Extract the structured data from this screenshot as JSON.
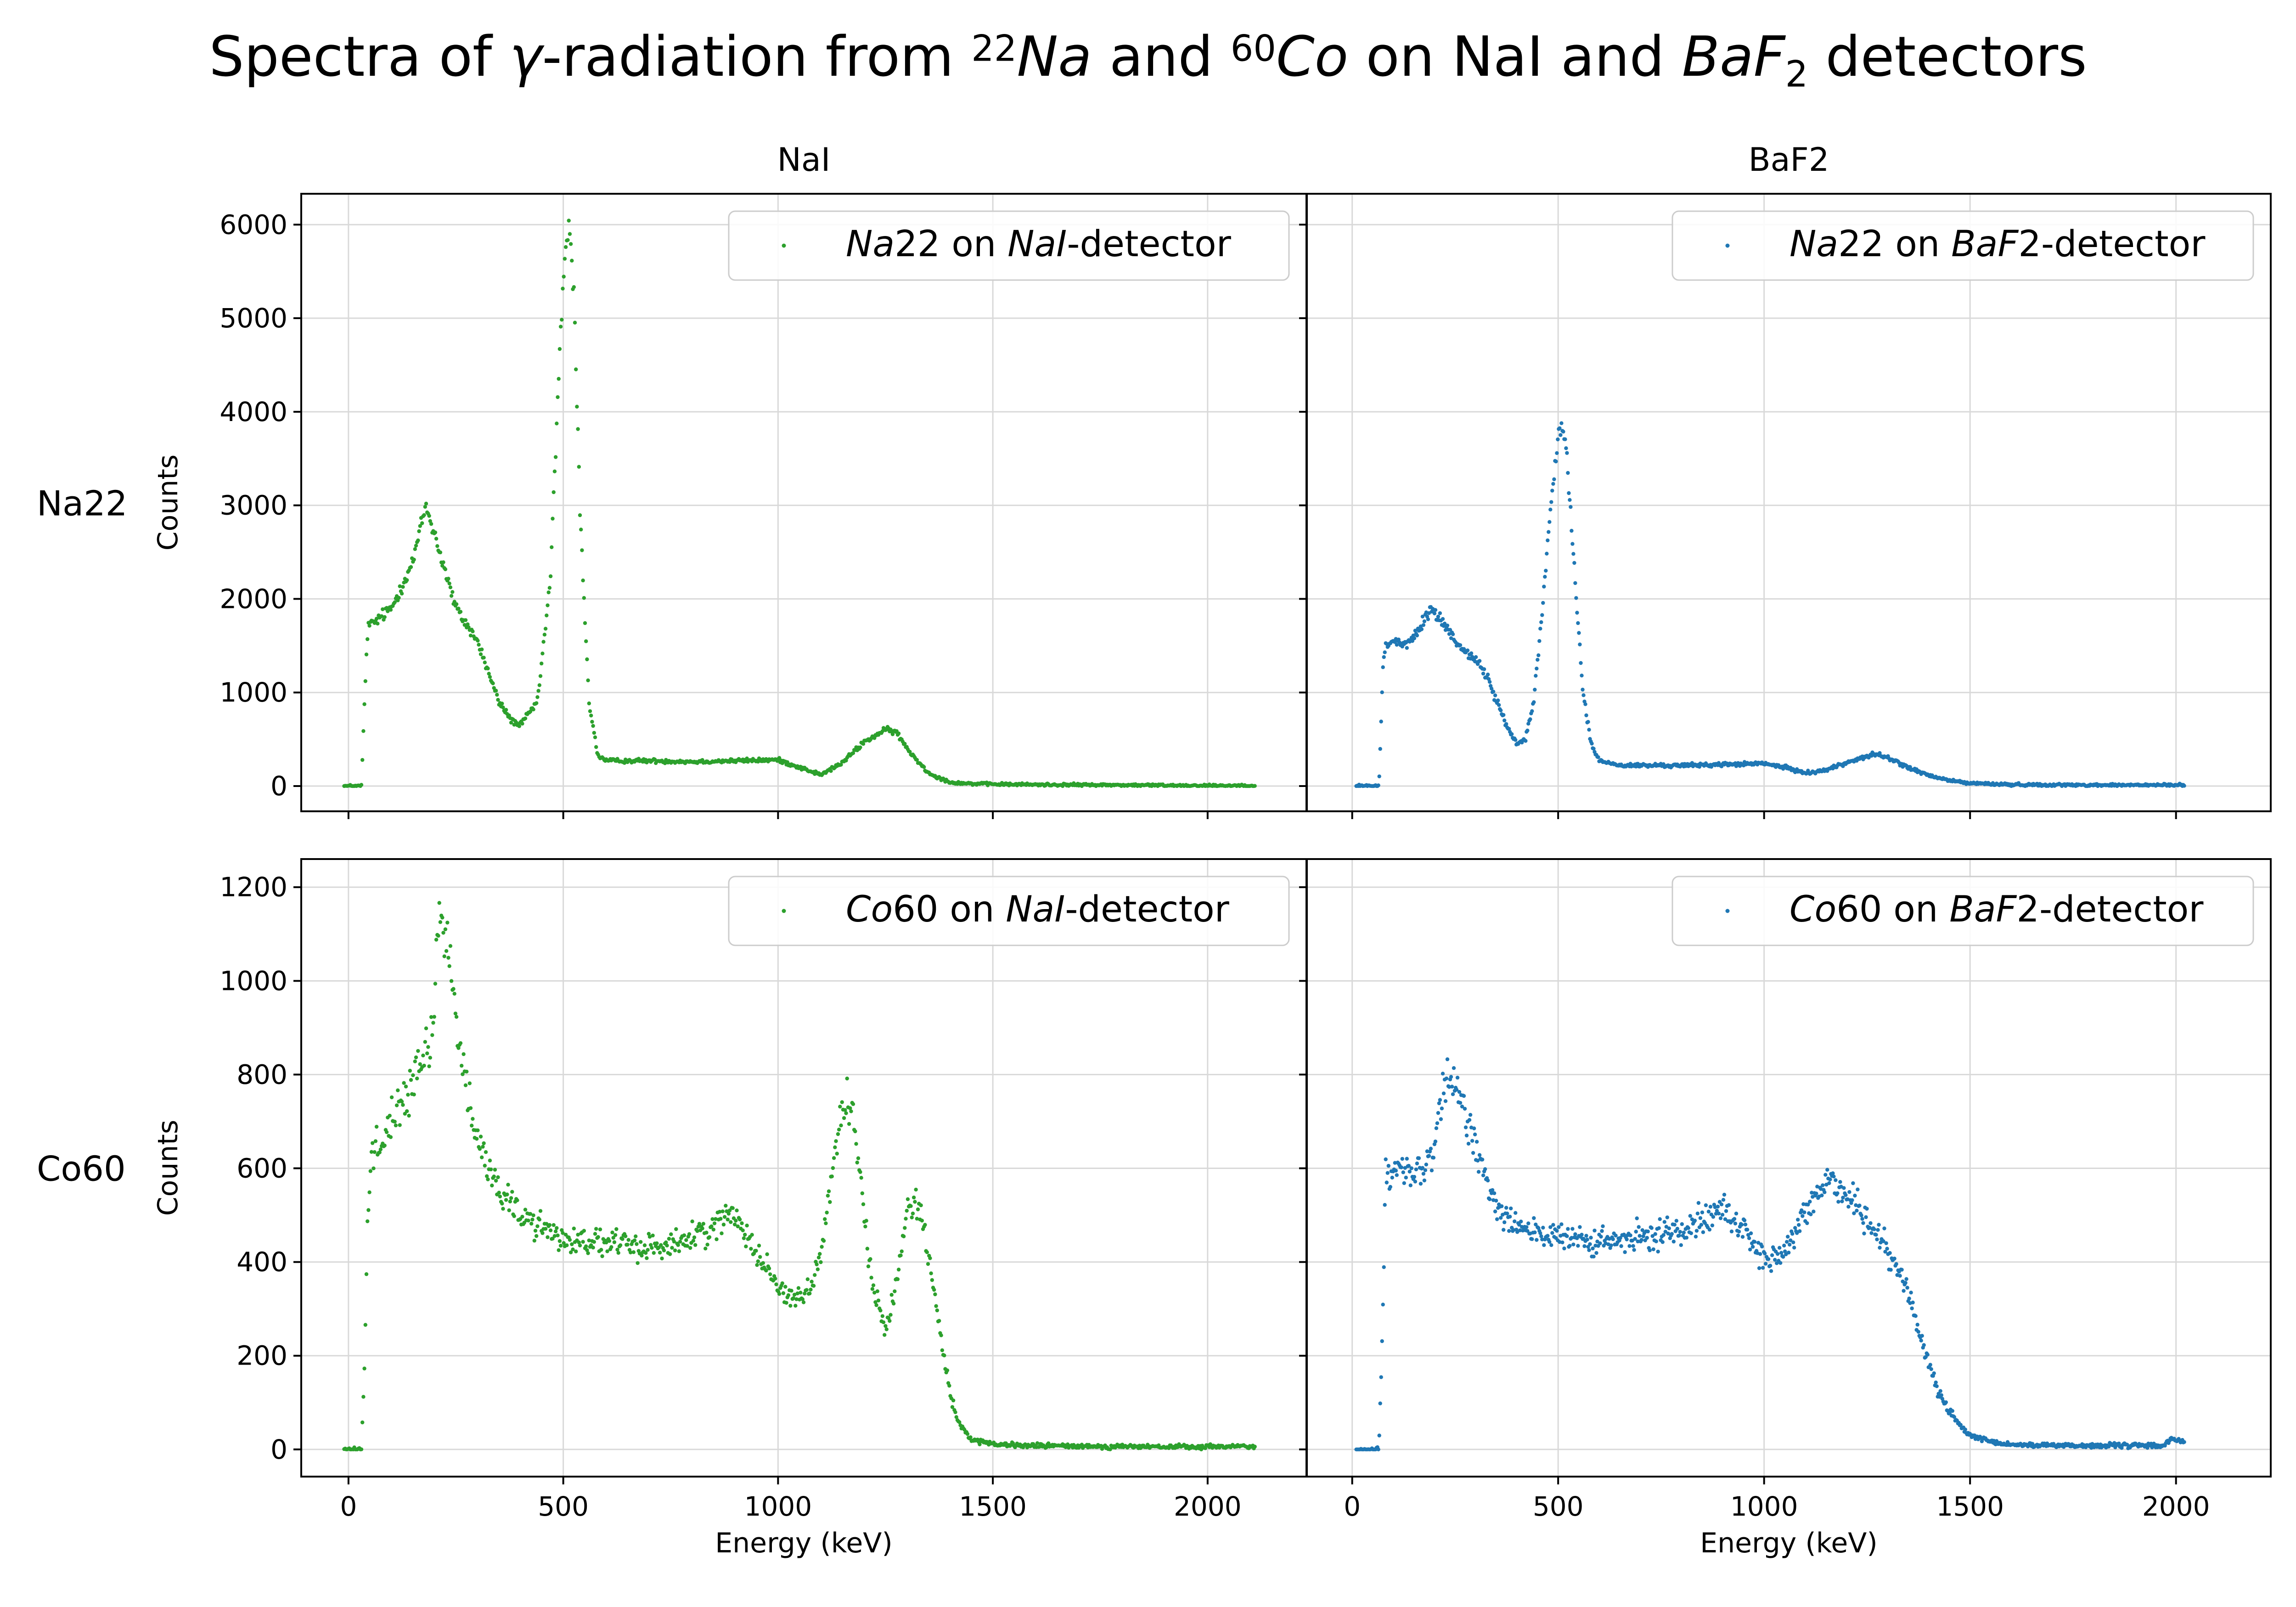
{
  "figure": {
    "title": {
      "t1": "Spectra of ",
      "t2": "γ",
      "t3": "-radiation from ",
      "t4": "22",
      "t5": "Na",
      "t6": " and ",
      "t7": "60",
      "t8": "Co",
      "t9": " on NaI and ",
      "t10": "BaF",
      "t11": "2",
      "t12": " detectors"
    },
    "column_titles": [
      "NaI",
      "BaF2"
    ],
    "row_labels": [
      "Na22",
      "Co60"
    ],
    "colors": {
      "nai": "#2ca02c",
      "baf2": "#1f77b4",
      "grid": "#d9d9d9"
    }
  },
  "chart_data": [
    {
      "type": "scatter",
      "panel": "Na22-NaI",
      "column_title": "NaI",
      "row_label": "Na22",
      "legend": {
        "italic": "Na",
        "text": "22 on ",
        "italic2": "NaI",
        "text2": "-detector",
        "position": "top-right"
      },
      "xlabel": "",
      "ylabel": "Counts",
      "xlim": [
        -110,
        2230
      ],
      "ylim": [
        -270,
        6330
      ],
      "xticks": [
        0,
        500,
        1000,
        1500,
        2000
      ],
      "yticks": [
        0,
        1000,
        2000,
        3000,
        4000,
        5000,
        6000
      ],
      "grid": true,
      "color": "#2ca02c",
      "x": [
        -10,
        30,
        40,
        45,
        60,
        100,
        150,
        180,
        200,
        250,
        300,
        350,
        380,
        400,
        440,
        470,
        490,
        505,
        515,
        525,
        540,
        560,
        580,
        600,
        700,
        800,
        900,
        1000,
        1050,
        1100,
        1150,
        1200,
        1250,
        1275,
        1300,
        1350,
        1400,
        1450,
        1500,
        1600,
        1800,
        2000,
        2110
      ],
      "y": [
        0,
        0,
        1200,
        1700,
        1750,
        1900,
        2400,
        3000,
        2700,
        1900,
        1550,
        900,
        700,
        650,
        900,
        2200,
        4500,
        5800,
        5900,
        5200,
        2800,
        900,
        330,
        270,
        270,
        260,
        270,
        280,
        200,
        120,
        250,
        470,
        600,
        580,
        400,
        140,
        40,
        25,
        20,
        15,
        10,
        5,
        5
      ]
    },
    {
      "type": "scatter",
      "panel": "Na22-BaF2",
      "column_title": "BaF2",
      "row_label": "Na22",
      "legend": {
        "italic": "Na",
        "text": "22 on ",
        "italic2": "BaF",
        "text2": "2-detector",
        "position": "top-right"
      },
      "xlabel": "",
      "ylabel": "",
      "xlim": [
        -110,
        2230
      ],
      "ylim": [
        -270,
        6330
      ],
      "xticks": [
        0,
        500,
        1000,
        1500,
        2000
      ],
      "yticks": [
        0,
        1000,
        2000,
        3000,
        4000,
        5000,
        6000
      ],
      "grid": true,
      "color": "#1f77b4",
      "x": [
        10,
        65,
        75,
        80,
        100,
        130,
        160,
        190,
        220,
        260,
        300,
        330,
        360,
        380,
        400,
        420,
        440,
        460,
        480,
        500,
        510,
        520,
        540,
        560,
        580,
        600,
        650,
        700,
        800,
        900,
        1000,
        1050,
        1100,
        1150,
        1200,
        1250,
        1275,
        1300,
        1350,
        1400,
        1450,
        1500,
        1600,
        1800,
        2020
      ],
      "y": [
        0,
        0,
        1300,
        1500,
        1550,
        1500,
        1650,
        1900,
        1750,
        1500,
        1350,
        1150,
        800,
        600,
        450,
        500,
        900,
        1800,
        2900,
        3700,
        3800,
        3600,
        2300,
        1000,
        450,
        270,
        220,
        220,
        220,
        230,
        240,
        200,
        140,
        170,
        250,
        320,
        340,
        300,
        200,
        110,
        60,
        30,
        15,
        10,
        10
      ]
    },
    {
      "type": "scatter",
      "panel": "Co60-NaI",
      "column_title": "NaI",
      "row_label": "Co60",
      "legend": {
        "italic": "Co",
        "text": "60 on ",
        "italic2": "NaI",
        "text2": "-detector",
        "position": "top-right"
      },
      "xlabel": "Energy (keV)",
      "ylabel": "Counts",
      "xlim": [
        -110,
        2230
      ],
      "ylim": [
        -58,
        1260
      ],
      "xticks": [
        0,
        500,
        1000,
        1500,
        2000
      ],
      "yticks": [
        0,
        200,
        400,
        600,
        800,
        1000,
        1200
      ],
      "grid": true,
      "color": "#2ca02c",
      "x": [
        -10,
        30,
        38,
        45,
        50,
        70,
        100,
        130,
        160,
        190,
        210,
        220,
        240,
        260,
        280,
        300,
        350,
        400,
        500,
        600,
        700,
        800,
        850,
        900,
        920,
        950,
        1000,
        1040,
        1080,
        1100,
        1120,
        1140,
        1160,
        1170,
        1180,
        1200,
        1220,
        1250,
        1270,
        1300,
        1320,
        1340,
        1360,
        1380,
        1400,
        1420,
        1450,
        1500,
        1600,
        1800,
        2000,
        2080,
        2110
      ],
      "y": [
        0,
        0,
        200,
        500,
        620,
        650,
        700,
        750,
        800,
        850,
        1100,
        1150,
        1000,
        850,
        750,
        650,
        560,
        500,
        450,
        440,
        430,
        450,
        480,
        500,
        480,
        420,
        350,
        320,
        350,
        420,
        550,
        680,
        750,
        740,
        680,
        500,
        350,
        250,
        340,
        500,
        540,
        480,
        360,
        230,
        120,
        60,
        20,
        10,
        8,
        6,
        5,
        8,
        3
      ]
    },
    {
      "type": "scatter",
      "panel": "Co60-BaF2",
      "column_title": "BaF2",
      "row_label": "Co60",
      "legend": {
        "italic": "Co",
        "text": "60 on ",
        "italic2": "BaF",
        "text2": "2-detector",
        "position": "top-right"
      },
      "xlabel": "Energy (keV)",
      "ylabel": "",
      "xlim": [
        -110,
        2230
      ],
      "ylim": [
        -58,
        1260
      ],
      "xticks": [
        0,
        500,
        1000,
        1500,
        2000
      ],
      "yticks": [
        0,
        200,
        400,
        600,
        800,
        1000,
        1200
      ],
      "grid": true,
      "color": "#1f77b4",
      "x": [
        10,
        65,
        75,
        80,
        100,
        130,
        160,
        190,
        210,
        230,
        260,
        300,
        350,
        400,
        500,
        600,
        700,
        800,
        850,
        900,
        950,
        1000,
        1020,
        1060,
        1100,
        1130,
        1160,
        1190,
        1220,
        1250,
        1300,
        1340,
        1360,
        1380,
        1400,
        1420,
        1450,
        1480,
        1500,
        1550,
        1600,
        1800,
        1970,
        1990,
        2000,
        2020
      ],
      "y": [
        0,
        0,
        300,
        570,
        590,
        590,
        590,
        610,
        700,
        800,
        750,
        650,
        520,
        480,
        450,
        440,
        450,
        470,
        500,
        510,
        470,
        410,
        400,
        430,
        500,
        550,
        580,
        560,
        520,
        490,
        430,
        360,
        300,
        240,
        180,
        130,
        80,
        45,
        30,
        15,
        10,
        8,
        8,
        25,
        20,
        15
      ]
    }
  ]
}
